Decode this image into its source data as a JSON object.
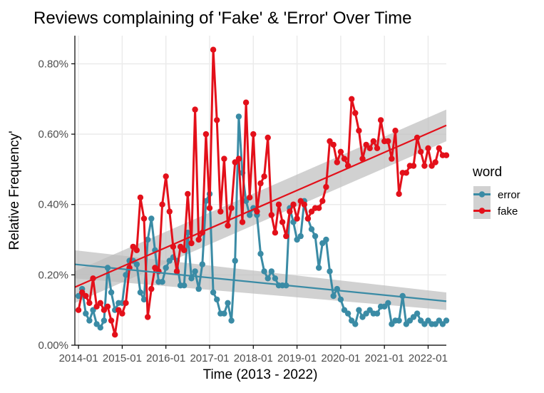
{
  "chart_data": {
    "type": "line",
    "title": "Reviews complaining of 'Fake' & 'Error' Over Time",
    "xlabel": "Time (2013 - 2022)",
    "ylabel": "Relative Frequency'",
    "xlim": [
      "2013-12-01",
      "2022-06-01"
    ],
    "ylim": [
      0,
      0.88
    ],
    "y_ticks": [
      0,
      0.2,
      0.4,
      0.6,
      0.8
    ],
    "y_tick_labels": [
      "0.00%",
      "0.20%",
      "0.40%",
      "0.60%",
      "0.80%"
    ],
    "x_ticks": [
      "2014-01",
      "2015-01",
      "2016-01",
      "2017-01",
      "2018-01",
      "2019-01",
      "2020-01",
      "2021-01",
      "2022-01"
    ],
    "x_tick_labels": [
      "2014-01",
      "2015-01",
      "2016-01",
      "2017-01",
      "2018-01",
      "2019-01",
      "2020-01",
      "2021-01",
      "2022-01"
    ],
    "grid": true,
    "legend": {
      "title": "word",
      "position": "right"
    },
    "series": [
      {
        "name": "error",
        "color": "#3a8ba5",
        "x": [
          "2014-01",
          "2014-02",
          "2014-03",
          "2014-04",
          "2014-05",
          "2014-06",
          "2014-07",
          "2014-08",
          "2014-09",
          "2014-10",
          "2014-11",
          "2014-12",
          "2015-01",
          "2015-02",
          "2015-03",
          "2015-04",
          "2015-05",
          "2015-06",
          "2015-07",
          "2015-08",
          "2015-09",
          "2015-10",
          "2015-11",
          "2015-12",
          "2016-01",
          "2016-02",
          "2016-03",
          "2016-04",
          "2016-05",
          "2016-06",
          "2016-07",
          "2016-08",
          "2016-09",
          "2016-10",
          "2016-11",
          "2016-12",
          "2017-01",
          "2017-02",
          "2017-03",
          "2017-04",
          "2017-05",
          "2017-06",
          "2017-07",
          "2017-08",
          "2017-09",
          "2017-10",
          "2017-11",
          "2017-12",
          "2018-01",
          "2018-02",
          "2018-03",
          "2018-04",
          "2018-05",
          "2018-06",
          "2018-07",
          "2018-08",
          "2018-09",
          "2018-10",
          "2018-11",
          "2018-12",
          "2019-01",
          "2019-02",
          "2019-03",
          "2019-04",
          "2019-05",
          "2019-06",
          "2019-07",
          "2019-08",
          "2019-09",
          "2019-10",
          "2019-11",
          "2019-12",
          "2020-01",
          "2020-02",
          "2020-03",
          "2020-04",
          "2020-05",
          "2020-06",
          "2020-07",
          "2020-08",
          "2020-09",
          "2020-10",
          "2020-11",
          "2020-12",
          "2021-01",
          "2021-02",
          "2021-03",
          "2021-04",
          "2021-05",
          "2021-06",
          "2021-07",
          "2021-08",
          "2021-09",
          "2021-10",
          "2021-11",
          "2021-12",
          "2022-01",
          "2022-02",
          "2022-03",
          "2022-04",
          "2022-05",
          "2022-06"
        ],
        "values": [
          0.14,
          0.16,
          0.09,
          0.07,
          0.1,
          0.06,
          0.05,
          0.07,
          0.22,
          0.15,
          0.1,
          0.12,
          0.12,
          0.2,
          0.24,
          0.24,
          0.23,
          0.15,
          0.13,
          0.3,
          0.36,
          0.27,
          0.18,
          0.18,
          0.22,
          0.24,
          0.25,
          0.24,
          0.17,
          0.17,
          0.32,
          0.19,
          0.21,
          0.16,
          0.23,
          0.41,
          0.43,
          0.15,
          0.13,
          0.09,
          0.09,
          0.12,
          0.07,
          0.24,
          0.65,
          0.49,
          0.41,
          0.37,
          0.39,
          0.37,
          0.26,
          0.21,
          0.19,
          0.21,
          0.19,
          0.17,
          0.17,
          0.17,
          0.39,
          0.35,
          0.3,
          0.31,
          0.41,
          0.36,
          0.33,
          0.31,
          0.22,
          0.29,
          0.3,
          0.21,
          0.14,
          0.16,
          0.13,
          0.1,
          0.09,
          0.07,
          0.06,
          0.1,
          0.08,
          0.09,
          0.1,
          0.09,
          0.09,
          0.11,
          0.11,
          0.12,
          0.06,
          0.07,
          0.07,
          0.14,
          0.06,
          0.07,
          0.08,
          0.09,
          0.07,
          0.06,
          0.07,
          0.06,
          0.06,
          0.07,
          0.06,
          0.07
        ]
      },
      {
        "name": "fake",
        "color": "#e3101a",
        "x": [
          "2014-01",
          "2014-02",
          "2014-03",
          "2014-04",
          "2014-05",
          "2014-06",
          "2014-07",
          "2014-08",
          "2014-09",
          "2014-10",
          "2014-11",
          "2014-12",
          "2015-01",
          "2015-02",
          "2015-03",
          "2015-04",
          "2015-05",
          "2015-06",
          "2015-07",
          "2015-08",
          "2015-09",
          "2015-10",
          "2015-11",
          "2015-12",
          "2016-01",
          "2016-02",
          "2016-03",
          "2016-04",
          "2016-05",
          "2016-06",
          "2016-07",
          "2016-08",
          "2016-09",
          "2016-10",
          "2016-11",
          "2016-12",
          "2017-01",
          "2017-02",
          "2017-03",
          "2017-04",
          "2017-05",
          "2017-06",
          "2017-07",
          "2017-08",
          "2017-09",
          "2017-10",
          "2017-11",
          "2017-12",
          "2018-01",
          "2018-02",
          "2018-03",
          "2018-04",
          "2018-05",
          "2018-06",
          "2018-07",
          "2018-08",
          "2018-09",
          "2018-10",
          "2018-11",
          "2018-12",
          "2019-01",
          "2019-02",
          "2019-03",
          "2019-04",
          "2019-05",
          "2019-06",
          "2019-07",
          "2019-08",
          "2019-09",
          "2019-10",
          "2019-11",
          "2019-12",
          "2020-01",
          "2020-02",
          "2020-03",
          "2020-04",
          "2020-05",
          "2020-06",
          "2020-07",
          "2020-08",
          "2020-09",
          "2020-10",
          "2020-11",
          "2020-12",
          "2021-01",
          "2021-02",
          "2021-03",
          "2021-04",
          "2021-05",
          "2021-06",
          "2021-07",
          "2021-08",
          "2021-09",
          "2021-10",
          "2021-11",
          "2021-12",
          "2022-01",
          "2022-02",
          "2022-03",
          "2022-04",
          "2022-05",
          "2022-06"
        ],
        "values": [
          0.1,
          0.15,
          0.14,
          0.12,
          0.19,
          0.11,
          0.12,
          0.1,
          0.11,
          0.07,
          0.03,
          0.1,
          0.09,
          0.12,
          0.22,
          0.28,
          0.27,
          0.42,
          0.36,
          0.08,
          0.16,
          0.22,
          0.21,
          0.4,
          0.48,
          0.38,
          0.28,
          0.21,
          0.28,
          0.27,
          0.43,
          0.29,
          0.67,
          0.3,
          0.32,
          0.6,
          0.39,
          0.84,
          0.64,
          0.38,
          0.53,
          0.34,
          0.39,
          0.52,
          0.53,
          0.35,
          0.69,
          0.42,
          0.6,
          0.38,
          0.46,
          0.48,
          0.59,
          0.37,
          0.32,
          0.4,
          0.35,
          0.31,
          0.38,
          0.4,
          0.36,
          0.41,
          0.4,
          0.36,
          0.38,
          0.39,
          0.39,
          0.41,
          0.45,
          0.58,
          0.57,
          0.52,
          0.55,
          0.53,
          0.51,
          0.7,
          0.66,
          0.61,
          0.53,
          0.57,
          0.56,
          0.58,
          0.56,
          0.64,
          0.58,
          0.58,
          0.53,
          0.61,
          0.43,
          0.49,
          0.49,
          0.51,
          0.51,
          0.59,
          0.55,
          0.51,
          0.56,
          0.51,
          0.52,
          0.56,
          0.54,
          0.54
        ]
      }
    ],
    "trend_lines": [
      {
        "series": "error",
        "start": [
          "2013-12-01",
          0.23
        ],
        "end": [
          "2022-06-01",
          0.125
        ],
        "band": [
          0.04,
          0.025
        ]
      },
      {
        "series": "fake",
        "start": [
          "2013-12-01",
          0.165
        ],
        "end": [
          "2022-06-01",
          0.625
        ],
        "band": [
          0.045,
          0.045
        ]
      }
    ],
    "band_color": "#bebebe"
  }
}
